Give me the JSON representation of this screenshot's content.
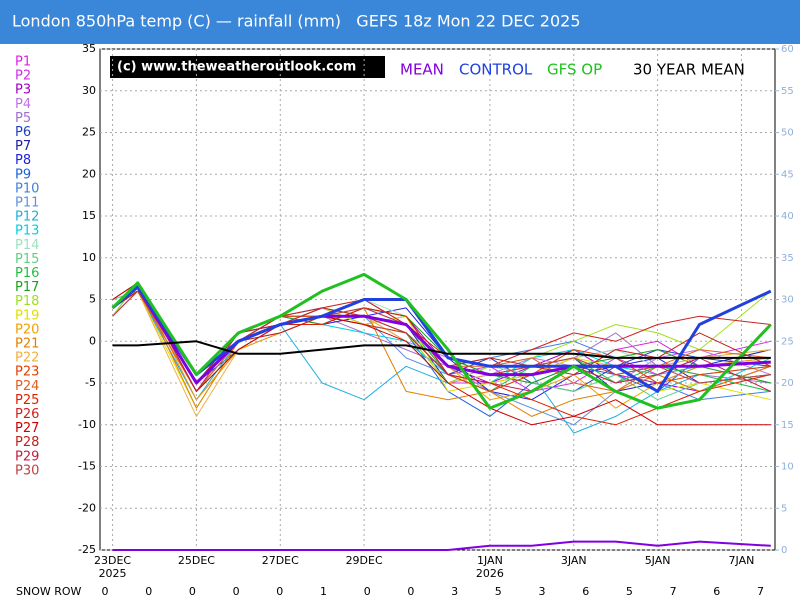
{
  "chart_data": {
    "type": "line",
    "title": "London 850hPa temp (C) — rainfall (mm)   GEFS 18z Mon 22 DEC 2025",
    "watermark": "(c) www.theweatheroutlook.com",
    "x": [
      0,
      0.6,
      2,
      3,
      4,
      5,
      6,
      7,
      8,
      9,
      10,
      11,
      12,
      13,
      14,
      15.7
    ],
    "xlim": [
      -0.3,
      15.8
    ],
    "xticks": [
      {
        "value": 0,
        "label": "23DEC"
      },
      {
        "value": 2,
        "label": "25DEC"
      },
      {
        "value": 4,
        "label": "27DEC"
      },
      {
        "value": 6,
        "label": "29DEC"
      },
      {
        "value": 9,
        "label": "1JAN"
      },
      {
        "value": 11,
        "label": "3JAN"
      },
      {
        "value": 13,
        "label": "5JAN"
      },
      {
        "value": 15,
        "label": "7JAN"
      }
    ],
    "year_labels": [
      {
        "value": 0,
        "label": "2025"
      },
      {
        "value": 9,
        "label": "2026"
      }
    ],
    "ylim": [
      -25,
      35
    ],
    "yticks": [
      -25,
      -20,
      -15,
      -10,
      -5,
      0,
      5,
      10,
      15,
      20,
      25,
      30,
      35
    ],
    "y2lim": [
      0,
      60
    ],
    "y2ticks": [
      0,
      5,
      10,
      15,
      20,
      25,
      30,
      35,
      40,
      45,
      50,
      55,
      60
    ],
    "grid": true,
    "series": [
      {
        "name": "P1",
        "color": "#e020e0",
        "values": [
          4,
          7,
          -6,
          0,
          2,
          3,
          2,
          1,
          -5,
          -5,
          -4,
          -2,
          -1,
          0,
          -3,
          -2
        ]
      },
      {
        "name": "P2",
        "color": "#d030e8",
        "values": [
          3,
          6,
          -7,
          -1,
          2,
          4,
          3,
          2,
          -4,
          -3,
          -6,
          -5,
          -2,
          -4,
          -2,
          0
        ]
      },
      {
        "name": "P3",
        "color": "#a000c0",
        "values": [
          4,
          7,
          -5,
          0,
          3,
          2,
          4,
          3,
          -3,
          -5,
          -3,
          -1,
          -4,
          -5,
          -6,
          -3
        ]
      },
      {
        "name": "P4",
        "color": "#c070e8",
        "values": [
          5,
          6,
          -4,
          1,
          2,
          3,
          3,
          0,
          -2,
          -4,
          -2,
          -3,
          -5,
          -2,
          -1,
          -4
        ]
      },
      {
        "name": "P5",
        "color": "#a070d0",
        "values": [
          4,
          6,
          -6,
          0,
          1,
          3,
          1,
          -1,
          -3,
          -6,
          -4,
          -2,
          1,
          -3,
          -4,
          -5
        ]
      },
      {
        "name": "P6",
        "color": "#2040c0",
        "values": [
          3,
          7,
          -5,
          -1,
          2,
          4,
          2,
          3,
          -4,
          -2,
          -5,
          -6,
          -3,
          -1,
          -2,
          -3
        ]
      },
      {
        "name": "P7",
        "color": "#2020a0",
        "values": [
          4,
          7,
          -4,
          0,
          3,
          3,
          5,
          2,
          -5,
          -4,
          -3,
          -2,
          -6,
          -5,
          -3,
          -1
        ]
      },
      {
        "name": "P8",
        "color": "#2020e0",
        "values": [
          4,
          6,
          -5,
          1,
          2,
          2,
          3,
          4,
          -2,
          -6,
          -7,
          -4,
          -3,
          -2,
          -5,
          -4
        ]
      },
      {
        "name": "P9",
        "color": "#2060e0",
        "values": [
          5,
          7,
          -6,
          0,
          3,
          4,
          2,
          1,
          -6,
          -9,
          -5,
          -3,
          -4,
          -6,
          -2,
          -2
        ]
      },
      {
        "name": "P10",
        "color": "#4080e0",
        "values": [
          4,
          6,
          -5,
          0,
          2,
          3,
          4,
          2,
          -3,
          -2,
          -1,
          0,
          -2,
          -5,
          -7,
          -6
        ]
      },
      {
        "name": "P11",
        "color": "#6090e0",
        "values": [
          4,
          7,
          -6,
          -1,
          1,
          3,
          3,
          -2,
          -4,
          -6,
          -8,
          -10,
          -6,
          -4,
          -3,
          -5
        ]
      },
      {
        "name": "P12",
        "color": "#20b0e0",
        "values": [
          3,
          6,
          -7,
          0,
          2,
          -5,
          -7,
          -3,
          -5,
          -3,
          -4,
          -11,
          -9,
          -6,
          -4,
          -3
        ]
      },
      {
        "name": "P13",
        "color": "#00d0e0",
        "values": [
          4,
          6,
          -5,
          1,
          3,
          2,
          1,
          0,
          -4,
          -5,
          -2,
          -1,
          -3,
          -4,
          -6,
          -2
        ]
      },
      {
        "name": "P14",
        "color": "#a0e0c0",
        "values": [
          4,
          7,
          -4,
          0,
          2,
          4,
          5,
          3,
          -2,
          -3,
          -4,
          -2,
          -1,
          -3,
          -2,
          -1
        ]
      },
      {
        "name": "P15",
        "color": "#60d080",
        "values": [
          5,
          6,
          -6,
          0,
          3,
          3,
          2,
          1,
          -3,
          -4,
          -5,
          -6,
          -4,
          -7,
          -5,
          -4
        ]
      },
      {
        "name": "P16",
        "color": "#20c040",
        "values": [
          4,
          7,
          -5,
          1,
          2,
          4,
          3,
          2,
          -4,
          -6,
          -3,
          -2,
          -5,
          -3,
          -4,
          -6
        ]
      },
      {
        "name": "P17",
        "color": "#20a020",
        "values": [
          4,
          6,
          -4,
          0,
          3,
          2,
          4,
          3,
          -2,
          -4,
          -5,
          -3,
          -2,
          -1,
          -3,
          -5
        ]
      },
      {
        "name": "P18",
        "color": "#a0e020",
        "values": [
          3,
          7,
          -6,
          -1,
          2,
          3,
          3,
          1,
          -5,
          -3,
          -2,
          0,
          2,
          1,
          -1,
          6
        ]
      },
      {
        "name": "P19",
        "color": "#e0e000",
        "values": [
          4,
          6,
          -8,
          0,
          2,
          4,
          2,
          3,
          -6,
          -5,
          -4,
          -2,
          -3,
          -6,
          -5,
          -7
        ]
      },
      {
        "name": "P20",
        "color": "#f0a000",
        "values": [
          4,
          7,
          -7,
          -1,
          1,
          3,
          3,
          2,
          -3,
          -7,
          -6,
          -4,
          -8,
          -5,
          -3,
          -2
        ]
      },
      {
        "name": "P21",
        "color": "#e08000",
        "values": [
          5,
          7,
          -8,
          0,
          2,
          3,
          4,
          -6,
          -7,
          -6,
          -9,
          -7,
          -6,
          -4,
          -6,
          -3
        ]
      },
      {
        "name": "P22",
        "color": "#f0b040",
        "values": [
          4,
          6,
          -9,
          -1,
          2,
          4,
          3,
          0,
          -5,
          -4,
          -3,
          -2,
          -4,
          -3,
          -2,
          -1
        ]
      },
      {
        "name": "P23",
        "color": "#e04000",
        "values": [
          4,
          7,
          -5,
          0,
          3,
          3,
          2,
          1,
          -4,
          -6,
          -4,
          -1,
          -2,
          -5,
          -4,
          -3
        ]
      },
      {
        "name": "P24",
        "color": "#e06020",
        "values": [
          3,
          6,
          -6,
          0,
          2,
          3,
          3,
          2,
          -3,
          -3,
          -2,
          -5,
          -6,
          -3,
          -1,
          -2
        ]
      },
      {
        "name": "P25",
        "color": "#e02000",
        "values": [
          4,
          7,
          -5,
          1,
          2,
          2,
          4,
          3,
          -4,
          -5,
          -7,
          -9,
          -10,
          -8,
          -6,
          -4
        ]
      },
      {
        "name": "P26",
        "color": "#d02020",
        "values": [
          4,
          6,
          -4,
          0,
          3,
          4,
          5,
          2,
          -2,
          -3,
          -1,
          1,
          0,
          2,
          3,
          2
        ]
      },
      {
        "name": "P27",
        "color": "#d00000",
        "values": [
          5,
          7,
          -6,
          -1,
          2,
          3,
          2,
          0,
          -5,
          -8,
          -10,
          -9,
          -7,
          -10,
          -10,
          -10
        ]
      },
      {
        "name": "P28",
        "color": "#c02020",
        "values": [
          4,
          6,
          -5,
          0,
          1,
          3,
          3,
          2,
          -3,
          -2,
          -3,
          -4,
          -1,
          -2,
          1,
          -3
        ]
      },
      {
        "name": "P29",
        "color": "#c02040",
        "values": [
          4,
          7,
          -6,
          1,
          2,
          4,
          3,
          1,
          -4,
          -5,
          -6,
          -3,
          -5,
          -4,
          -2,
          -6
        ]
      },
      {
        "name": "P30",
        "color": "#c04040",
        "values": [
          3,
          6,
          -5,
          0,
          2,
          3,
          4,
          2,
          -3,
          -4,
          -3,
          -2,
          -4,
          -3,
          -5,
          -4
        ]
      },
      {
        "name": "MEAN",
        "color": "#8000e0",
        "line_width": 3,
        "values": [
          4,
          6.5,
          -5,
          0,
          2,
          3,
          3,
          2,
          -3,
          -4,
          -4,
          -3,
          -3,
          -3,
          -3,
          -2.5
        ]
      },
      {
        "name": "CONTROL",
        "color": "#2040e0",
        "line_width": 3,
        "values": [
          4,
          6.5,
          -4,
          0,
          2,
          3,
          5,
          5,
          -2,
          -3,
          -3,
          -3,
          -3,
          -6,
          2,
          6
        ]
      },
      {
        "name": "GFS OP",
        "color": "#20c020",
        "line_width": 3,
        "values": [
          4,
          7,
          -4,
          1,
          3,
          6,
          8,
          5,
          -1,
          -8,
          -6,
          -3,
          -6,
          -8,
          -7,
          2
        ]
      },
      {
        "name": "30 YEAR MEAN",
        "color": "#000000",
        "line_width": 2,
        "values": [
          -0.5,
          -0.5,
          0,
          -1.5,
          -1.5,
          -1,
          -0.5,
          -0.5,
          -1.5,
          -1.5,
          -1.5,
          -1.5,
          -2,
          -2,
          -2,
          -2
        ]
      }
    ],
    "rainfall": {
      "axis": "y2",
      "color": "#8000e0",
      "values": [
        0,
        0,
        0,
        0,
        0,
        0,
        0,
        0,
        0,
        0.5,
        0.5,
        1,
        1,
        0.5,
        1,
        0.5
      ]
    },
    "snow_row": {
      "label": "SNOW ROW",
      "values": [
        0,
        0,
        0,
        0,
        0,
        1,
        0,
        0,
        3,
        5,
        3,
        6,
        5,
        7,
        6,
        7
      ]
    }
  }
}
